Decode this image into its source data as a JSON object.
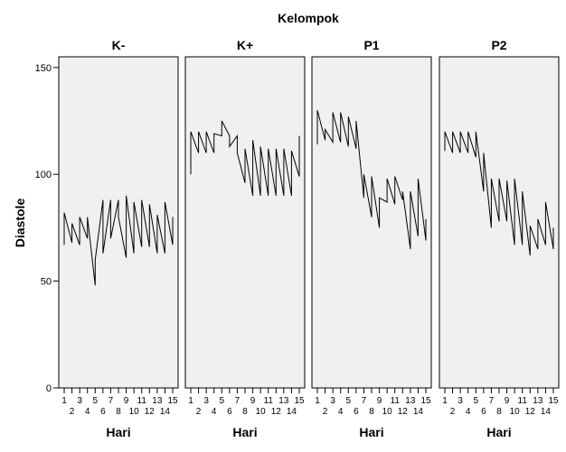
{
  "chart_data": {
    "type": "line",
    "title": "Kelompok",
    "xlabel": "Hari",
    "ylabel": "Diastole",
    "ylim": [
      0,
      155
    ],
    "yticks": [
      0,
      50,
      100,
      150
    ],
    "xlim": [
      0.3,
      15.7
    ],
    "xticks": [
      1,
      2,
      3,
      4,
      5,
      6,
      7,
      8,
      9,
      10,
      11,
      12,
      13,
      14,
      15
    ],
    "grid": false,
    "panel_background": "#f0f0f0",
    "line_color": "#000000",
    "panels": [
      {
        "name": "K-",
        "x": [
          1,
          1,
          2,
          2,
          3,
          3,
          4,
          4,
          5,
          5,
          6,
          6,
          7,
          7,
          8,
          8,
          9,
          9,
          10,
          10,
          11,
          11,
          12,
          12,
          13,
          13,
          14,
          14,
          15,
          15
        ],
        "y": [
          67,
          82,
          68,
          77,
          67,
          80,
          70,
          80,
          48,
          60,
          88,
          63,
          88,
          70,
          88,
          80,
          61,
          90,
          63,
          87,
          66,
          88,
          66,
          86,
          63,
          81,
          63,
          87,
          67,
          80
        ]
      },
      {
        "name": "K+",
        "x": [
          1,
          1,
          2,
          2,
          3,
          3,
          4,
          4,
          5,
          5,
          6,
          6,
          7,
          7,
          8,
          8,
          9,
          9,
          10,
          10,
          11,
          11,
          12,
          12,
          13,
          13,
          14,
          14,
          15,
          15
        ],
        "y": [
          100,
          120,
          110,
          120,
          110,
          120,
          110,
          119,
          118,
          125,
          118,
          113,
          118,
          110,
          96,
          112,
          90,
          116,
          90,
          113,
          90,
          112,
          90,
          112,
          90,
          112,
          90,
          111,
          99,
          118
        ]
      },
      {
        "name": "P1",
        "x": [
          1,
          1,
          2,
          2,
          3,
          3,
          4,
          4,
          5,
          5,
          6,
          6,
          7,
          7,
          8,
          8,
          9,
          9,
          10,
          10,
          11,
          11,
          12,
          12,
          13,
          13,
          14,
          14,
          15,
          15
        ],
        "y": [
          114,
          130,
          116,
          121,
          115,
          129,
          115,
          129,
          113,
          127,
          112,
          125,
          89,
          100,
          80,
          99,
          75,
          89,
          87,
          98,
          86,
          99,
          88,
          92,
          65,
          92,
          71,
          98,
          69,
          79
        ]
      },
      {
        "name": "P2",
        "x": [
          1,
          1,
          2,
          2,
          3,
          3,
          4,
          4,
          5,
          5,
          6,
          6,
          7,
          7,
          8,
          8,
          9,
          9,
          10,
          10,
          11,
          11,
          12,
          12,
          13,
          13,
          14,
          14,
          15,
          15
        ],
        "y": [
          111,
          120,
          110,
          120,
          110,
          120,
          110,
          120,
          108,
          120,
          92,
          110,
          75,
          98,
          78,
          98,
          78,
          97,
          67,
          98,
          67,
          92,
          62,
          76,
          65,
          79,
          67,
          87,
          65,
          75
        ]
      }
    ]
  }
}
